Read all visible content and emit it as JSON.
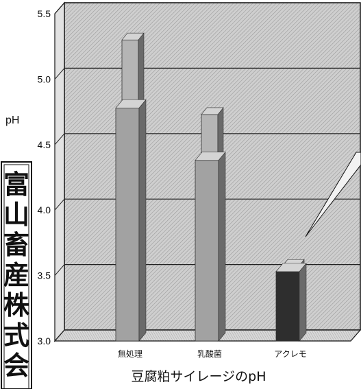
{
  "chart_data": {
    "type": "bar",
    "title": "豆腐粕サイレージのpH",
    "ylabel": "pH",
    "xlabel": "",
    "ylim": [
      3.0,
      5.5
    ],
    "yticks": [
      "3.0",
      "3.5",
      "4.0",
      "4.5",
      "5.0",
      "5.5"
    ],
    "categories": [
      "無処理",
      "乳酸菌",
      "アクレモ"
    ],
    "series": [
      {
        "values": [
          5.3,
          4.73,
          3.57
        ]
      },
      {
        "values": [
          4.78,
          4.38,
          3.53
        ]
      }
    ],
    "grid": true,
    "legend": "none",
    "colors": {
      "bar_light": "#b5b5b5",
      "bar_mid": "#a2a2a2",
      "bar_dark": "#2e2e2e",
      "wall": "#c9c9c9",
      "grid": "#2a2a2a"
    }
  },
  "side_text": "富山畜産株式会"
}
